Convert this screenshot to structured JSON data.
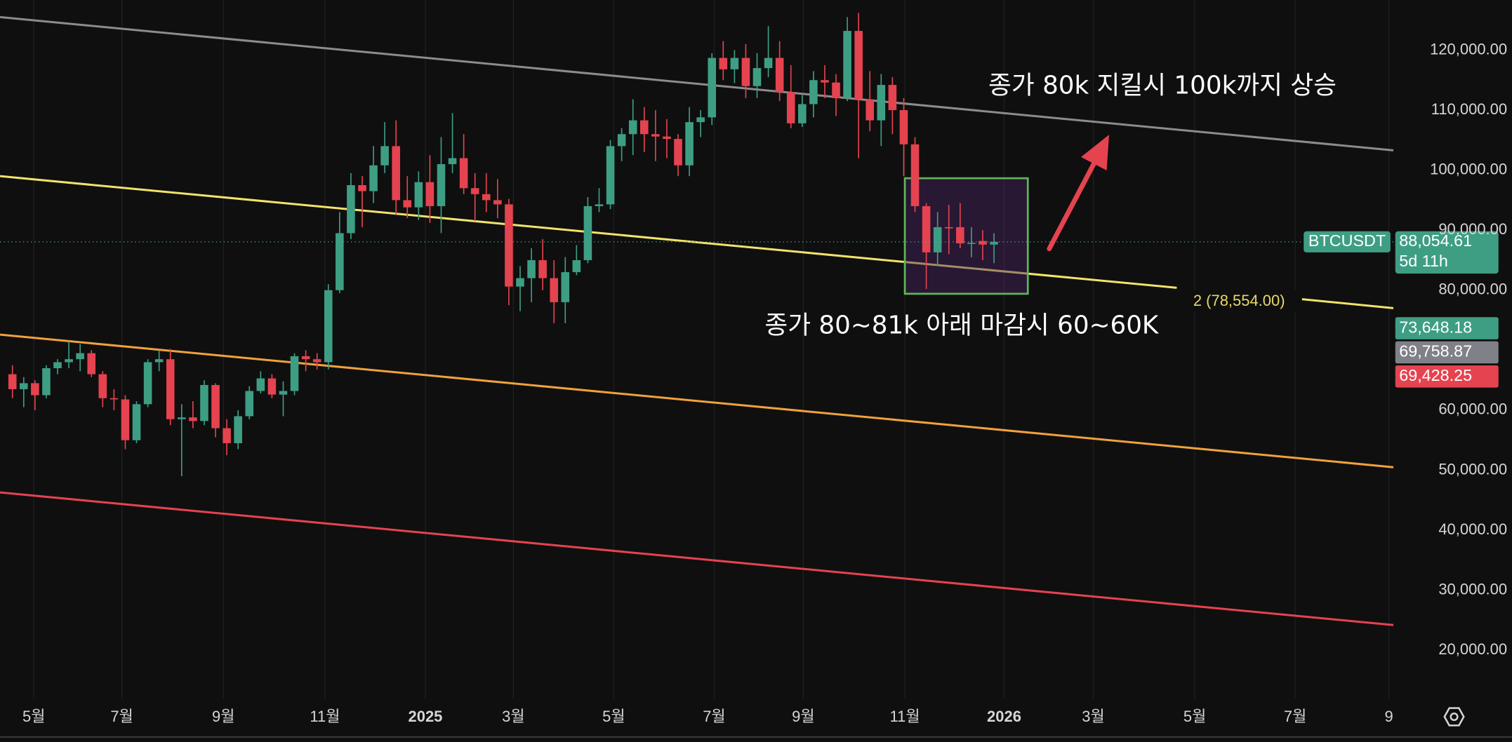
{
  "chart_data": {
    "type": "candlestick",
    "symbol": "BTCUSDT",
    "countdown": "5d 11h",
    "last_price": {
      "value": 88054.61,
      "label": "88,054.61"
    },
    "up_color": "#3e9e84",
    "down_color": "#e5434f",
    "categories": [
      null,
      null,
      null,
      null,
      null,
      null,
      null,
      null,
      null,
      null,
      null,
      null,
      null,
      null,
      null,
      null,
      null,
      null,
      null,
      null,
      null,
      null,
      null,
      null,
      null,
      null,
      null,
      null,
      null,
      null,
      null,
      null,
      null,
      null,
      null,
      null,
      null,
      null,
      null,
      null,
      null,
      null,
      null,
      null,
      null,
      null,
      null,
      null,
      null,
      null,
      null,
      null,
      null,
      null,
      null,
      null,
      null,
      null,
      null,
      null,
      null,
      null,
      null,
      null,
      null,
      null,
      null,
      null,
      null,
      null,
      null,
      null,
      null,
      null,
      null,
      null,
      null,
      null,
      null,
      null,
      null,
      null,
      null,
      null,
      null,
      null,
      null,
      null
    ],
    "open": [
      66000,
      63500,
      64500,
      62500,
      67000,
      68000,
      68500,
      69500,
      66000,
      62000,
      61800,
      55000,
      61000,
      68000,
      68500,
      58500,
      58800,
      58200,
      64200,
      57000,
      54500,
      59000,
      63200,
      65300,
      62600,
      63200,
      69000,
      68500,
      68000,
      80000,
      89500,
      97500,
      96500,
      100800,
      104000,
      95000,
      93800,
      98000,
      94000,
      101000,
      102000,
      97000,
      96000,
      95000,
      94300,
      80600,
      82000,
      85000,
      82000,
      78000,
      83000,
      85000,
      94000,
      94300,
      104000,
      106000,
      108300,
      106000,
      105600,
      105200,
      100800,
      108000,
      108800,
      118700,
      116800,
      118700,
      114000,
      117000,
      118700,
      113000,
      107800,
      111000,
      115000,
      114600,
      112000,
      123200,
      111800,
      108300,
      114200,
      110000,
      104300,
      94000,
      86300,
      90500,
      90500,
      87800,
      88200,
      87600
    ],
    "high": [
      67500,
      65500,
      65000,
      67500,
      68500,
      71500,
      71000,
      70000,
      66500,
      63500,
      62500,
      61500,
      68500,
      70000,
      70200,
      61000,
      61500,
      65000,
      64500,
      58500,
      60000,
      64000,
      66500,
      66000,
      64800,
      69500,
      70000,
      69500,
      81000,
      93000,
      99500,
      99000,
      104000,
      108000,
      108300,
      99000,
      99800,
      102500,
      105500,
      109500,
      106000,
      99500,
      99500,
      98500,
      95200,
      84000,
      87000,
      88500,
      85000,
      85500,
      87500,
      95500,
      97000,
      105000,
      107000,
      111800,
      110500,
      110000,
      108500,
      106000,
      110500,
      110000,
      119500,
      121500,
      120000,
      121000,
      119500,
      124000,
      121500,
      117500,
      112500,
      116500,
      117500,
      116000,
      125500,
      126200,
      116500,
      116000,
      115500,
      112000,
      105500,
      94500,
      93000,
      94200,
      94500,
      90500,
      90000,
      89500
    ],
    "low": [
      62000,
      60500,
      60000,
      62000,
      66000,
      67000,
      66500,
      65500,
      60500,
      60000,
      53500,
      54500,
      60500,
      66500,
      57500,
      49000,
      57000,
      57500,
      55500,
      52500,
      53500,
      58500,
      62800,
      62000,
      59000,
      62500,
      66500,
      66800,
      66800,
      79500,
      88500,
      90500,
      94500,
      99500,
      92500,
      92000,
      91700,
      91200,
      89500,
      99500,
      96000,
      91500,
      93000,
      92000,
      77500,
      76500,
      78000,
      80000,
      74500,
      74500,
      82500,
      84500,
      93000,
      93500,
      101500,
      102500,
      103000,
      101500,
      102000,
      99000,
      99000,
      105500,
      107500,
      115000,
      114500,
      112000,
      112000,
      115500,
      111500,
      107000,
      107200,
      108800,
      112000,
      109000,
      111500,
      102000,
      106500,
      104000,
      106000,
      99000,
      93000,
      80200,
      84000,
      86000,
      87000,
      85500,
      85000,
      84500
    ],
    "close": [
      63500,
      64500,
      62500,
      67000,
      68000,
      68500,
      69500,
      66000,
      62000,
      61800,
      55000,
      61000,
      68000,
      68500,
      58500,
      58800,
      58200,
      64200,
      57000,
      54500,
      59000,
      63200,
      65300,
      62600,
      63200,
      69000,
      68500,
      68000,
      80000,
      89500,
      97500,
      96500,
      100800,
      104000,
      95000,
      93800,
      98000,
      94000,
      101000,
      102000,
      97000,
      96000,
      95000,
      94300,
      80600,
      82000,
      85000,
      82000,
      78000,
      83000,
      85000,
      94000,
      94300,
      104000,
      106000,
      108300,
      106000,
      105600,
      105200,
      100800,
      108000,
      108800,
      118700,
      116800,
      118700,
      114000,
      117000,
      118700,
      113000,
      107800,
      111000,
      115000,
      114600,
      112000,
      123200,
      111800,
      108300,
      114200,
      110000,
      104300,
      94000,
      86300,
      90500,
      90300,
      87800,
      87900,
      87600,
      88054.61
    ],
    "xlim": [
      -1.1,
      122.4
    ],
    "xticks": [
      {
        "value": 1.9,
        "label": "5월"
      },
      {
        "value": 9.7,
        "label": "7월"
      },
      {
        "value": 18.7,
        "label": "9월"
      },
      {
        "value": 27.7,
        "label": "11월"
      },
      {
        "value": 36.6,
        "label": "2025"
      },
      {
        "value": 44.4,
        "label": "3월"
      },
      {
        "value": 53.3,
        "label": "5월"
      },
      {
        "value": 62.2,
        "label": "7월"
      },
      {
        "value": 70.1,
        "label": "9월"
      },
      {
        "value": 79.1,
        "label": "11월"
      },
      {
        "value": 87.9,
        "label": "2026"
      },
      {
        "value": 95.8,
        "label": "3월"
      },
      {
        "value": 104.8,
        "label": "5월"
      },
      {
        "value": 113.7,
        "label": "7월"
      },
      {
        "value": 122.0,
        "label": "9"
      }
    ],
    "ylim": [
      11970,
      128350
    ],
    "yticks": [
      {
        "value": 20000,
        "label": "20,000.00"
      },
      {
        "value": 30000,
        "label": "30,000.00"
      },
      {
        "value": 40000,
        "label": "40,000.00"
      },
      {
        "value": 50000,
        "label": "50,000.00"
      },
      {
        "value": 60000,
        "label": "60,000.00"
      },
      {
        "value": 80000,
        "label": "80,000.00"
      },
      {
        "value": 90000,
        "label": "90,000.00"
      },
      {
        "value": 100000,
        "label": "100,000.00"
      },
      {
        "value": 110000,
        "label": "110,000.00"
      },
      {
        "value": 120000,
        "label": "120,000.00"
      }
    ],
    "grid": true,
    "trend_lines": [
      {
        "color": "#8c8c8c",
        "x": [
          -1.1,
          122.4
        ],
        "values": [
          125500,
          103300
        ]
      },
      {
        "color": "#f2e36b",
        "x": [
          -1.1,
          103.2
        ],
        "values": [
          99000,
          80400
        ]
      },
      {
        "color": "#f2e36b",
        "x": [
          114.3,
          122.4
        ],
        "values": [
          78500,
          77000
        ]
      },
      {
        "color": "#f0a23c",
        "x": [
          -1.1,
          122.4
        ],
        "values": [
          72600,
          50500
        ]
      },
      {
        "color": "#e5434f",
        "x": [
          -1.1,
          122.4
        ],
        "values": [
          46300,
          24200
        ]
      }
    ],
    "zone": {
      "x": [
        79.1,
        90.0
      ],
      "y": [
        79400,
        98650
      ]
    },
    "arrow": {
      "x": [
        91.9,
        97.2
      ],
      "y": [
        86900,
        105900
      ]
    },
    "price_labels": [
      {
        "value": 73648.18,
        "label": "73,648.18",
        "color": "#3e9e84"
      },
      {
        "value": 69758.87,
        "label": "69,758.87",
        "color": "#808088"
      },
      {
        "value": 69428.25,
        "label": "69,428.25",
        "color": "#e5434f"
      }
    ],
    "annotations": [
      "종가 80k  지킬시 100k까지 상승",
      "종가 80~81k 아래 마감시 60~60K",
      "2 (78,554.00)"
    ]
  }
}
